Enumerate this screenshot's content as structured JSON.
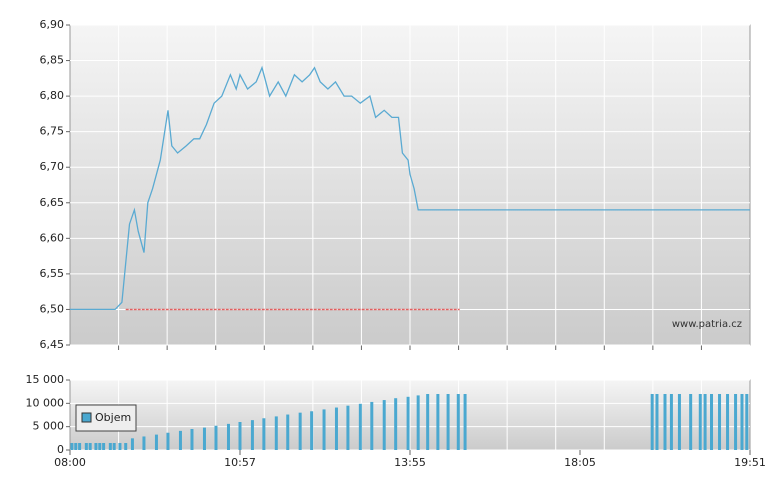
{
  "chart_data": [
    {
      "type": "line",
      "color": "#5aaad2",
      "x": [
        "08:00",
        "08:47",
        "08:54",
        "09:02",
        "09:07",
        "09:11",
        "09:17",
        "09:21",
        "09:26",
        "09:34",
        "09:42",
        "09:46",
        "09:52",
        "10:01",
        "10:09",
        "10:15",
        "10:22",
        "10:30",
        "10:38",
        "10:47",
        "10:53",
        "10:57",
        "11:05",
        "11:14",
        "11:20",
        "11:28",
        "11:37",
        "11:45",
        "11:54",
        "12:02",
        "12:10",
        "12:15",
        "12:21",
        "12:29",
        "12:37",
        "12:46",
        "12:54",
        "13:03",
        "13:13",
        "13:19",
        "13:28",
        "13:36",
        "13:43",
        "13:47",
        "13:53",
        "13:55",
        "14:01",
        "14:07",
        "14:10",
        "19:51"
      ],
      "values": [
        6.5,
        6.5,
        6.51,
        6.62,
        6.64,
        6.61,
        6.58,
        6.65,
        6.67,
        6.71,
        6.78,
        6.73,
        6.72,
        6.73,
        6.74,
        6.74,
        6.76,
        6.79,
        6.8,
        6.83,
        6.81,
        6.83,
        6.81,
        6.82,
        6.84,
        6.8,
        6.82,
        6.8,
        6.83,
        6.82,
        6.83,
        6.84,
        6.82,
        6.81,
        6.82,
        6.8,
        6.8,
        6.79,
        6.8,
        6.77,
        6.78,
        6.77,
        6.77,
        6.72,
        6.71,
        6.69,
        6.67,
        6.64,
        6.64,
        6.64
      ],
      "reference_line": {
        "value": 6.5,
        "x": [
          "08:58",
          "15:08"
        ],
        "color": "#e06060"
      },
      "xlim": [
        "08:00",
        "19:51"
      ],
      "ylim": [
        6.45,
        6.9
      ],
      "yticks": [
        {
          "value": 6.45,
          "label": "6,45"
        },
        {
          "value": 6.5,
          "label": "6,50"
        },
        {
          "value": 6.55,
          "label": "6,55"
        },
        {
          "value": 6.6,
          "label": "6,60"
        },
        {
          "value": 6.65,
          "label": "6,65"
        },
        {
          "value": 6.7,
          "label": "6,70"
        },
        {
          "value": 6.75,
          "label": "6,75"
        },
        {
          "value": 6.8,
          "label": "6,80"
        },
        {
          "value": 6.85,
          "label": "6,85"
        },
        {
          "value": 6.9,
          "label": "6,90"
        }
      ],
      "grid": true,
      "watermark": "www.patria.cz"
    },
    {
      "type": "bar",
      "x": [
        "08:02",
        "08:06",
        "08:10",
        "08:17",
        "08:21",
        "08:27",
        "08:31",
        "08:35",
        "08:42",
        "08:46",
        "08:52",
        "08:58",
        "09:05",
        "09:17",
        "09:30",
        "09:42",
        "09:55",
        "10:07",
        "10:20",
        "10:32",
        "10:45",
        "10:57",
        "11:10",
        "11:22",
        "11:35",
        "11:47",
        "12:00",
        "12:12",
        "12:25",
        "12:38",
        "12:50",
        "13:03",
        "13:15",
        "13:28",
        "13:40",
        "13:53",
        "14:07",
        "14:21",
        "14:36",
        "14:51",
        "15:06",
        "15:16",
        "18:50",
        "18:53",
        "18:58",
        "19:02",
        "19:07",
        "19:14",
        "19:20",
        "19:23",
        "19:27",
        "19:32",
        "19:37",
        "19:42",
        "19:46",
        "19:49"
      ],
      "series": [
        {
          "name": "Objem",
          "color": "#4aa8d0",
          "values": [
            1500,
            1500,
            1500,
            1500,
            1500,
            1500,
            1500,
            1500,
            1500,
            1500,
            1500,
            1500,
            2500,
            2900,
            3300,
            3700,
            4100,
            4500,
            4800,
            5200,
            5600,
            6000,
            6400,
            6800,
            7200,
            7600,
            8000,
            8300,
            8700,
            9100,
            9500,
            9900,
            10300,
            10700,
            11100,
            11400,
            11700,
            12000,
            12000,
            12000,
            12000,
            12000,
            12000,
            12000,
            12000,
            12000,
            12000,
            12000,
            12000,
            12000,
            12000,
            12000,
            12000,
            12000,
            12000,
            12000
          ]
        }
      ],
      "xlim": [
        "08:00",
        "19:51"
      ],
      "xticks": [
        "08:00",
        "10:57",
        "13:55",
        "18:05",
        "19:51"
      ],
      "ylim": [
        0,
        15000
      ],
      "yticks": [
        0,
        {
          "value": 5000,
          "label": "5 000"
        },
        {
          "value": 10000,
          "label": "10 000"
        },
        {
          "value": 15000,
          "label": "15 000"
        }
      ],
      "grid": true,
      "legend": "top-left"
    }
  ]
}
